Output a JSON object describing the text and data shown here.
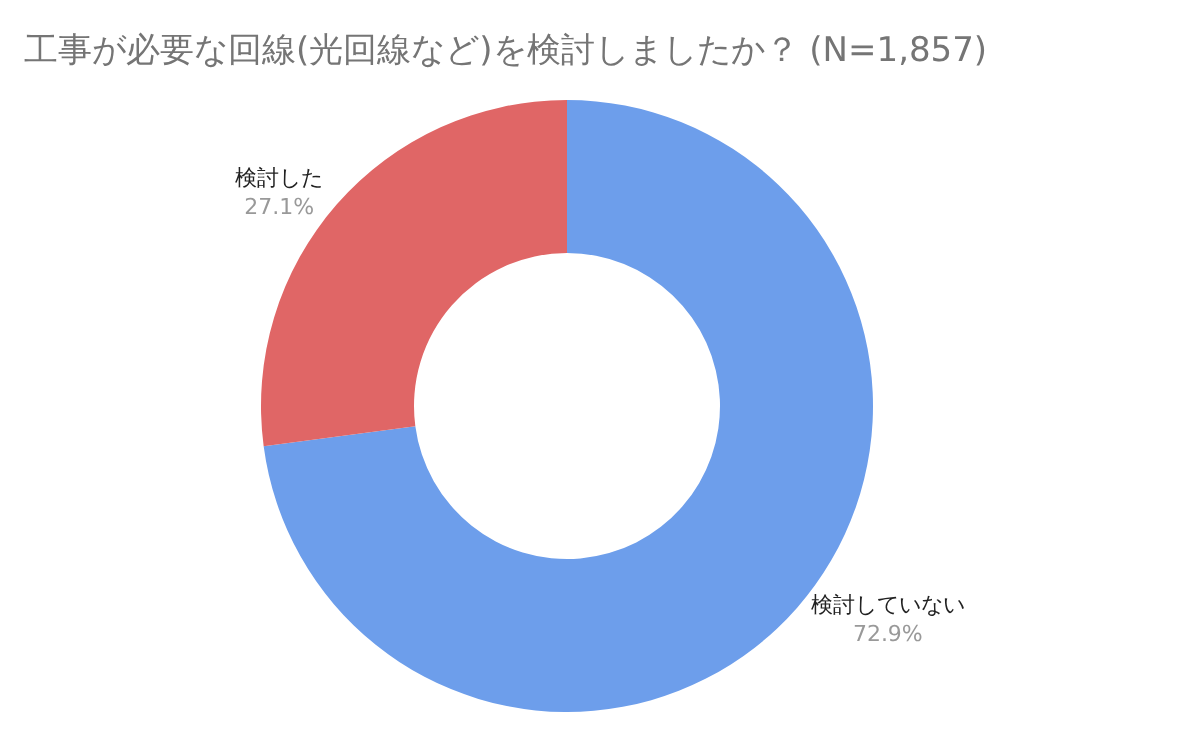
{
  "chart_data": {
    "type": "donut",
    "title": "工事が必要な回線(光回線など)を検討しましたか？ (N=1,857)",
    "categories": [
      "検討していない",
      "検討した"
    ],
    "values": [
      72.9,
      27.1
    ],
    "value_labels": [
      "72.9%",
      "27.1%"
    ],
    "colors": [
      "#6d9eeb",
      "#e06666"
    ]
  }
}
